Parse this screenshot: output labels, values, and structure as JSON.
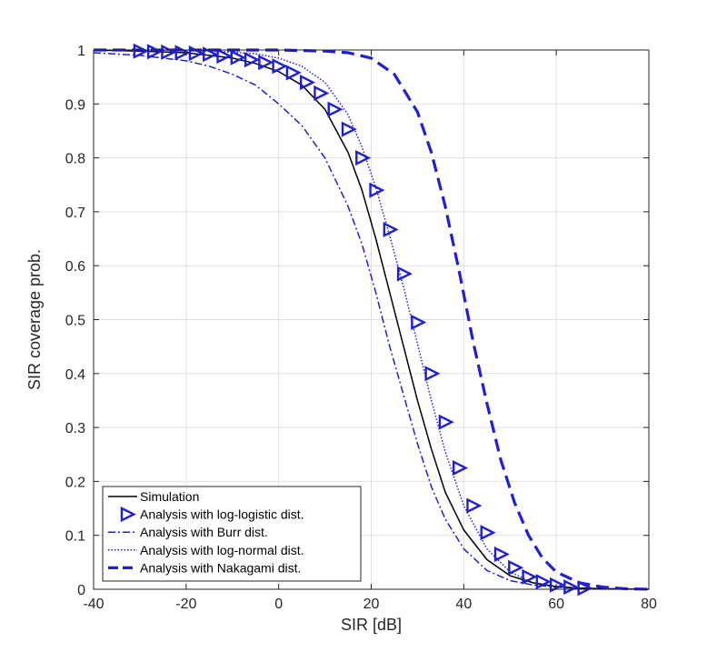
{
  "chart_data": {
    "type": "line",
    "xlabel": "SIR [dB]",
    "ylabel": "SIR coverage prob.",
    "xlim": [
      -40,
      80
    ],
    "ylim": [
      0,
      1
    ],
    "xticks": [
      "-40",
      "-20",
      "0",
      "20",
      "40",
      "60",
      "80"
    ],
    "yticks": [
      "0",
      "0.1",
      "0.2",
      "0.3",
      "0.4",
      "0.5",
      "0.6",
      "0.7",
      "0.8",
      "0.9",
      "1"
    ],
    "grid": true,
    "legend_position": "bottom-left",
    "series": [
      {
        "name": "Simulation",
        "color": "#000000",
        "style": "solid",
        "x": [
          -40,
          -30,
          -20,
          -15,
          -10,
          -5,
          0,
          5,
          10,
          15,
          18,
          21,
          24,
          27,
          30,
          33,
          36,
          40,
          45,
          50,
          55,
          60,
          65,
          70,
          80
        ],
        "y": [
          1.0,
          0.998,
          0.995,
          0.99,
          0.985,
          0.975,
          0.96,
          0.935,
          0.89,
          0.81,
          0.74,
          0.65,
          0.55,
          0.45,
          0.35,
          0.26,
          0.18,
          0.11,
          0.055,
          0.025,
          0.012,
          0.005,
          0.002,
          0.001,
          0.0
        ]
      },
      {
        "name": "Analysis with log-logistic dist.",
        "color": "#1f1fd6",
        "style": "triangles",
        "x": [
          -30,
          -27,
          -24,
          -21,
          -18,
          -15,
          -12,
          -9,
          -6,
          -3,
          0,
          3,
          6,
          9,
          12,
          15,
          18,
          21,
          24,
          27,
          30,
          33,
          36,
          39,
          42,
          45,
          48,
          51,
          54,
          57,
          60,
          63,
          66
        ],
        "y": [
          0.998,
          0.997,
          0.996,
          0.995,
          0.994,
          0.992,
          0.989,
          0.986,
          0.982,
          0.977,
          0.97,
          0.958,
          0.94,
          0.92,
          0.89,
          0.853,
          0.8,
          0.74,
          0.667,
          0.585,
          0.495,
          0.4,
          0.31,
          0.225,
          0.155,
          0.105,
          0.065,
          0.04,
          0.023,
          0.014,
          0.008,
          0.004,
          0.002
        ]
      },
      {
        "name": "Analysis with Burr dist.",
        "color": "#1f1fd6",
        "style": "dashdot",
        "x": [
          -40,
          -30,
          -20,
          -15,
          -10,
          -5,
          0,
          5,
          10,
          15,
          18,
          21,
          24,
          27,
          30,
          33,
          36,
          40,
          45,
          50,
          55,
          60,
          65,
          70,
          80
        ],
        "y": [
          0.995,
          0.99,
          0.98,
          0.97,
          0.955,
          0.935,
          0.9,
          0.86,
          0.8,
          0.71,
          0.64,
          0.55,
          0.45,
          0.36,
          0.27,
          0.19,
          0.13,
          0.075,
          0.035,
          0.016,
          0.008,
          0.004,
          0.002,
          0.001,
          0.0
        ]
      },
      {
        "name": "Analysis with log-normal dist.",
        "color": "#1f1fd6",
        "style": "dotted",
        "x": [
          -40,
          -30,
          -20,
          -15,
          -10,
          -5,
          0,
          5,
          10,
          15,
          18,
          21,
          24,
          27,
          30,
          33,
          36,
          40,
          45,
          50,
          55,
          60,
          65,
          70,
          80
        ],
        "y": [
          1.0,
          1.0,
          0.999,
          0.998,
          0.996,
          0.993,
          0.985,
          0.97,
          0.94,
          0.88,
          0.82,
          0.745,
          0.655,
          0.56,
          0.455,
          0.35,
          0.255,
          0.155,
          0.075,
          0.032,
          0.012,
          0.004,
          0.001,
          0.0,
          0.0
        ]
      },
      {
        "name": "Analysis with Nakagami dist.",
        "color": "#1f1fd6",
        "style": "dashed",
        "x": [
          -40,
          -20,
          0,
          10,
          15,
          20,
          25,
          30,
          33,
          36,
          39,
          42,
          45,
          48,
          51,
          54,
          57,
          60,
          65,
          70,
          75,
          80
        ],
        "y": [
          1.0,
          1.0,
          1.0,
          0.998,
          0.995,
          0.985,
          0.955,
          0.885,
          0.81,
          0.71,
          0.59,
          0.46,
          0.345,
          0.24,
          0.16,
          0.1,
          0.058,
          0.032,
          0.012,
          0.004,
          0.001,
          0.0
        ]
      }
    ]
  }
}
